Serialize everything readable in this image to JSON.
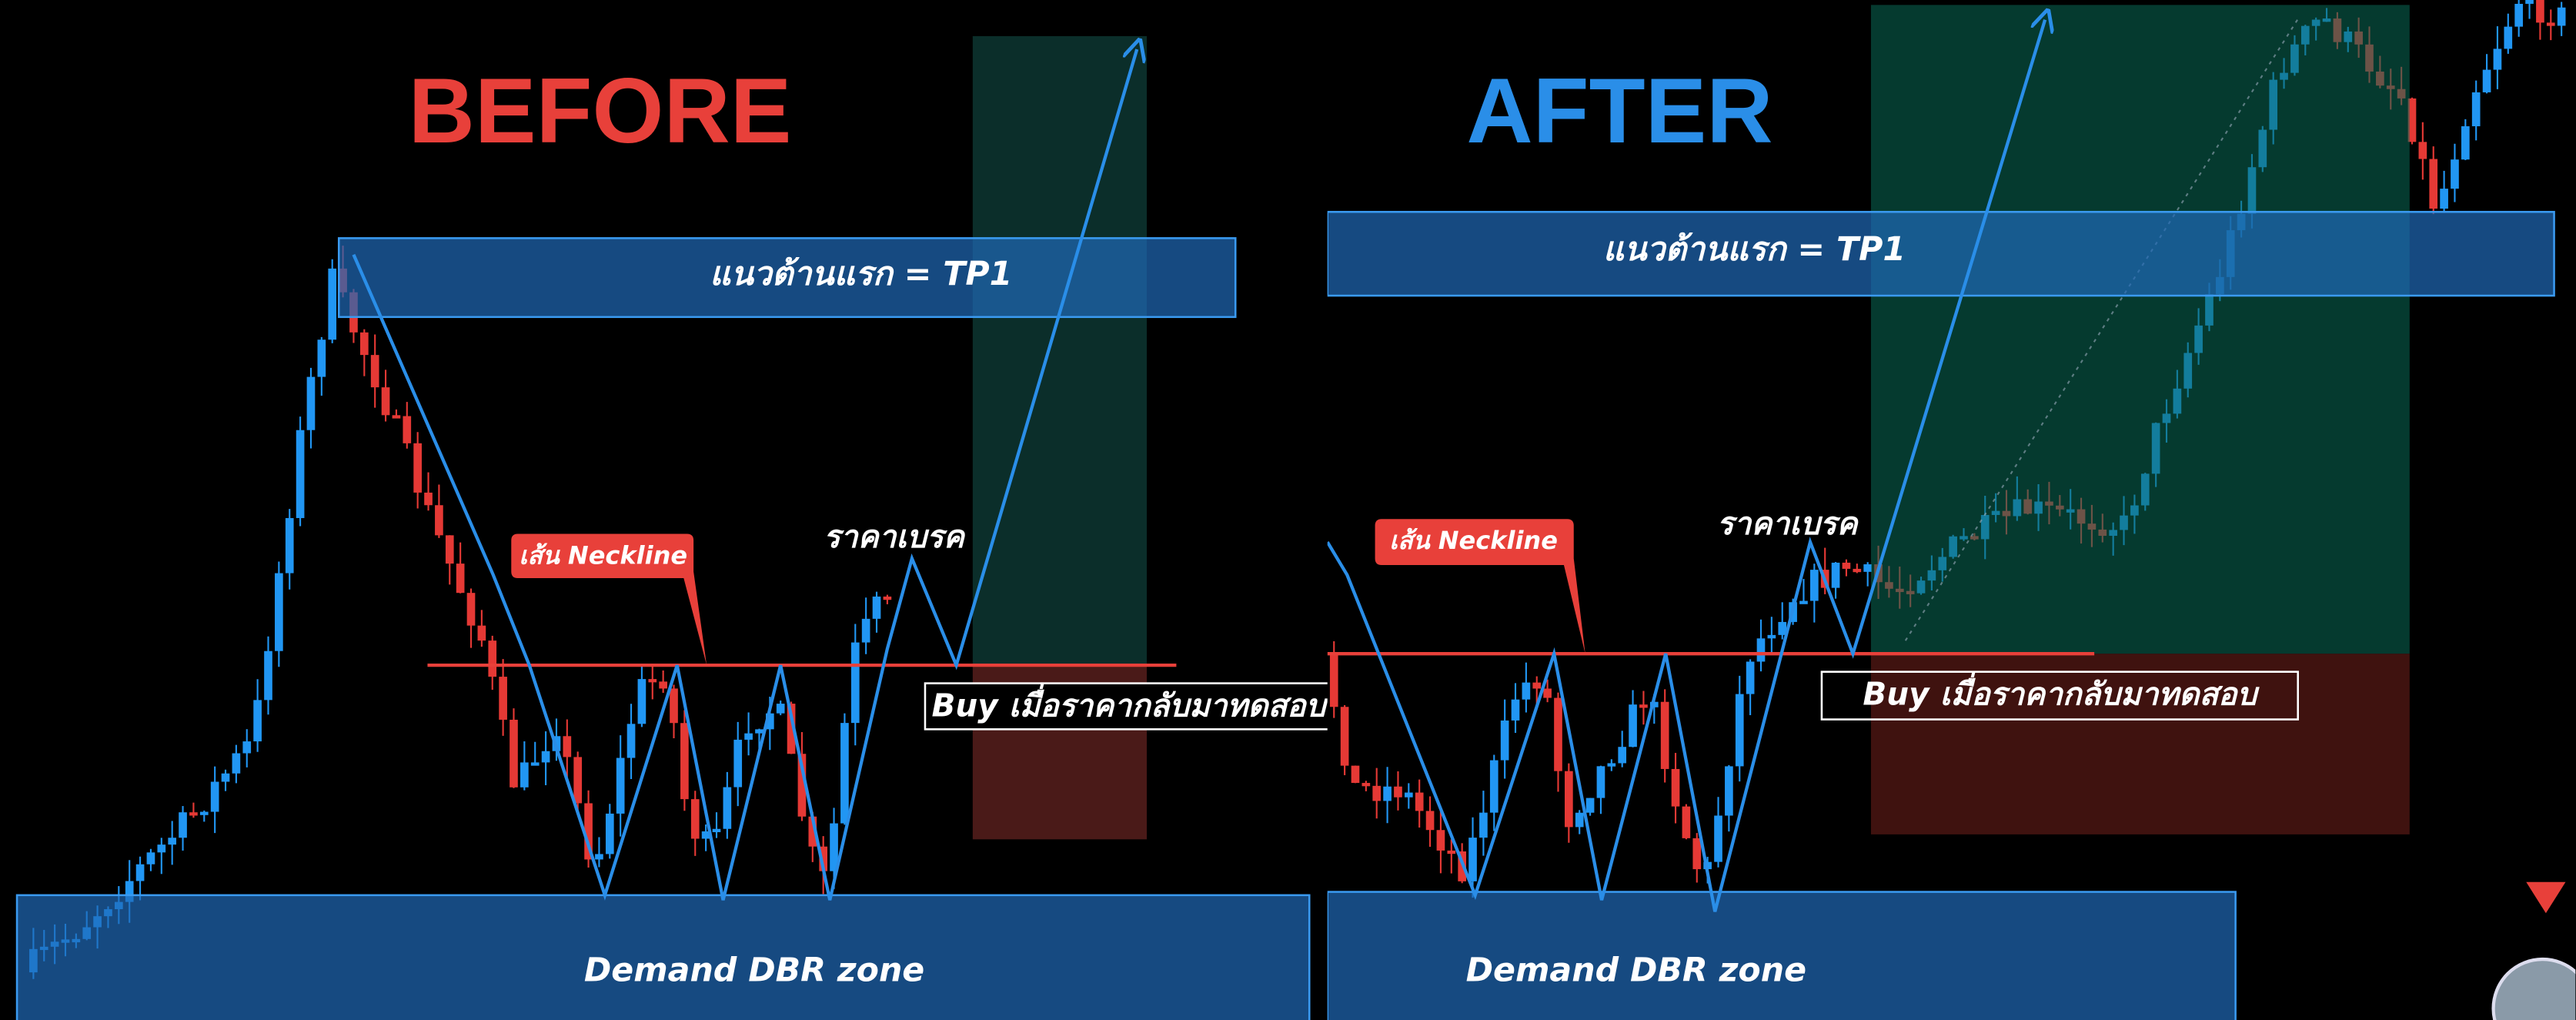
{
  "panels": [
    {
      "title": "BEFORE",
      "resistance_label": "แนวต้านแรก = TP1",
      "neckline_label": "เส้น Neckline",
      "break_label": "ราคาเบรค",
      "buy_label": "Buy เมื่อราคากลับมาทดสอบ",
      "demand_label": "Demand DBR zone"
    },
    {
      "title": "AFTER",
      "resistance_label": "แนวต้านแรก = TP1",
      "neckline_label": "เส้น Neckline",
      "break_label": "ราคาเบรค",
      "buy_label": "Buy เมื่อราคากลับมาทดสอบ",
      "demand_label": "Demand DBR zone"
    }
  ]
}
